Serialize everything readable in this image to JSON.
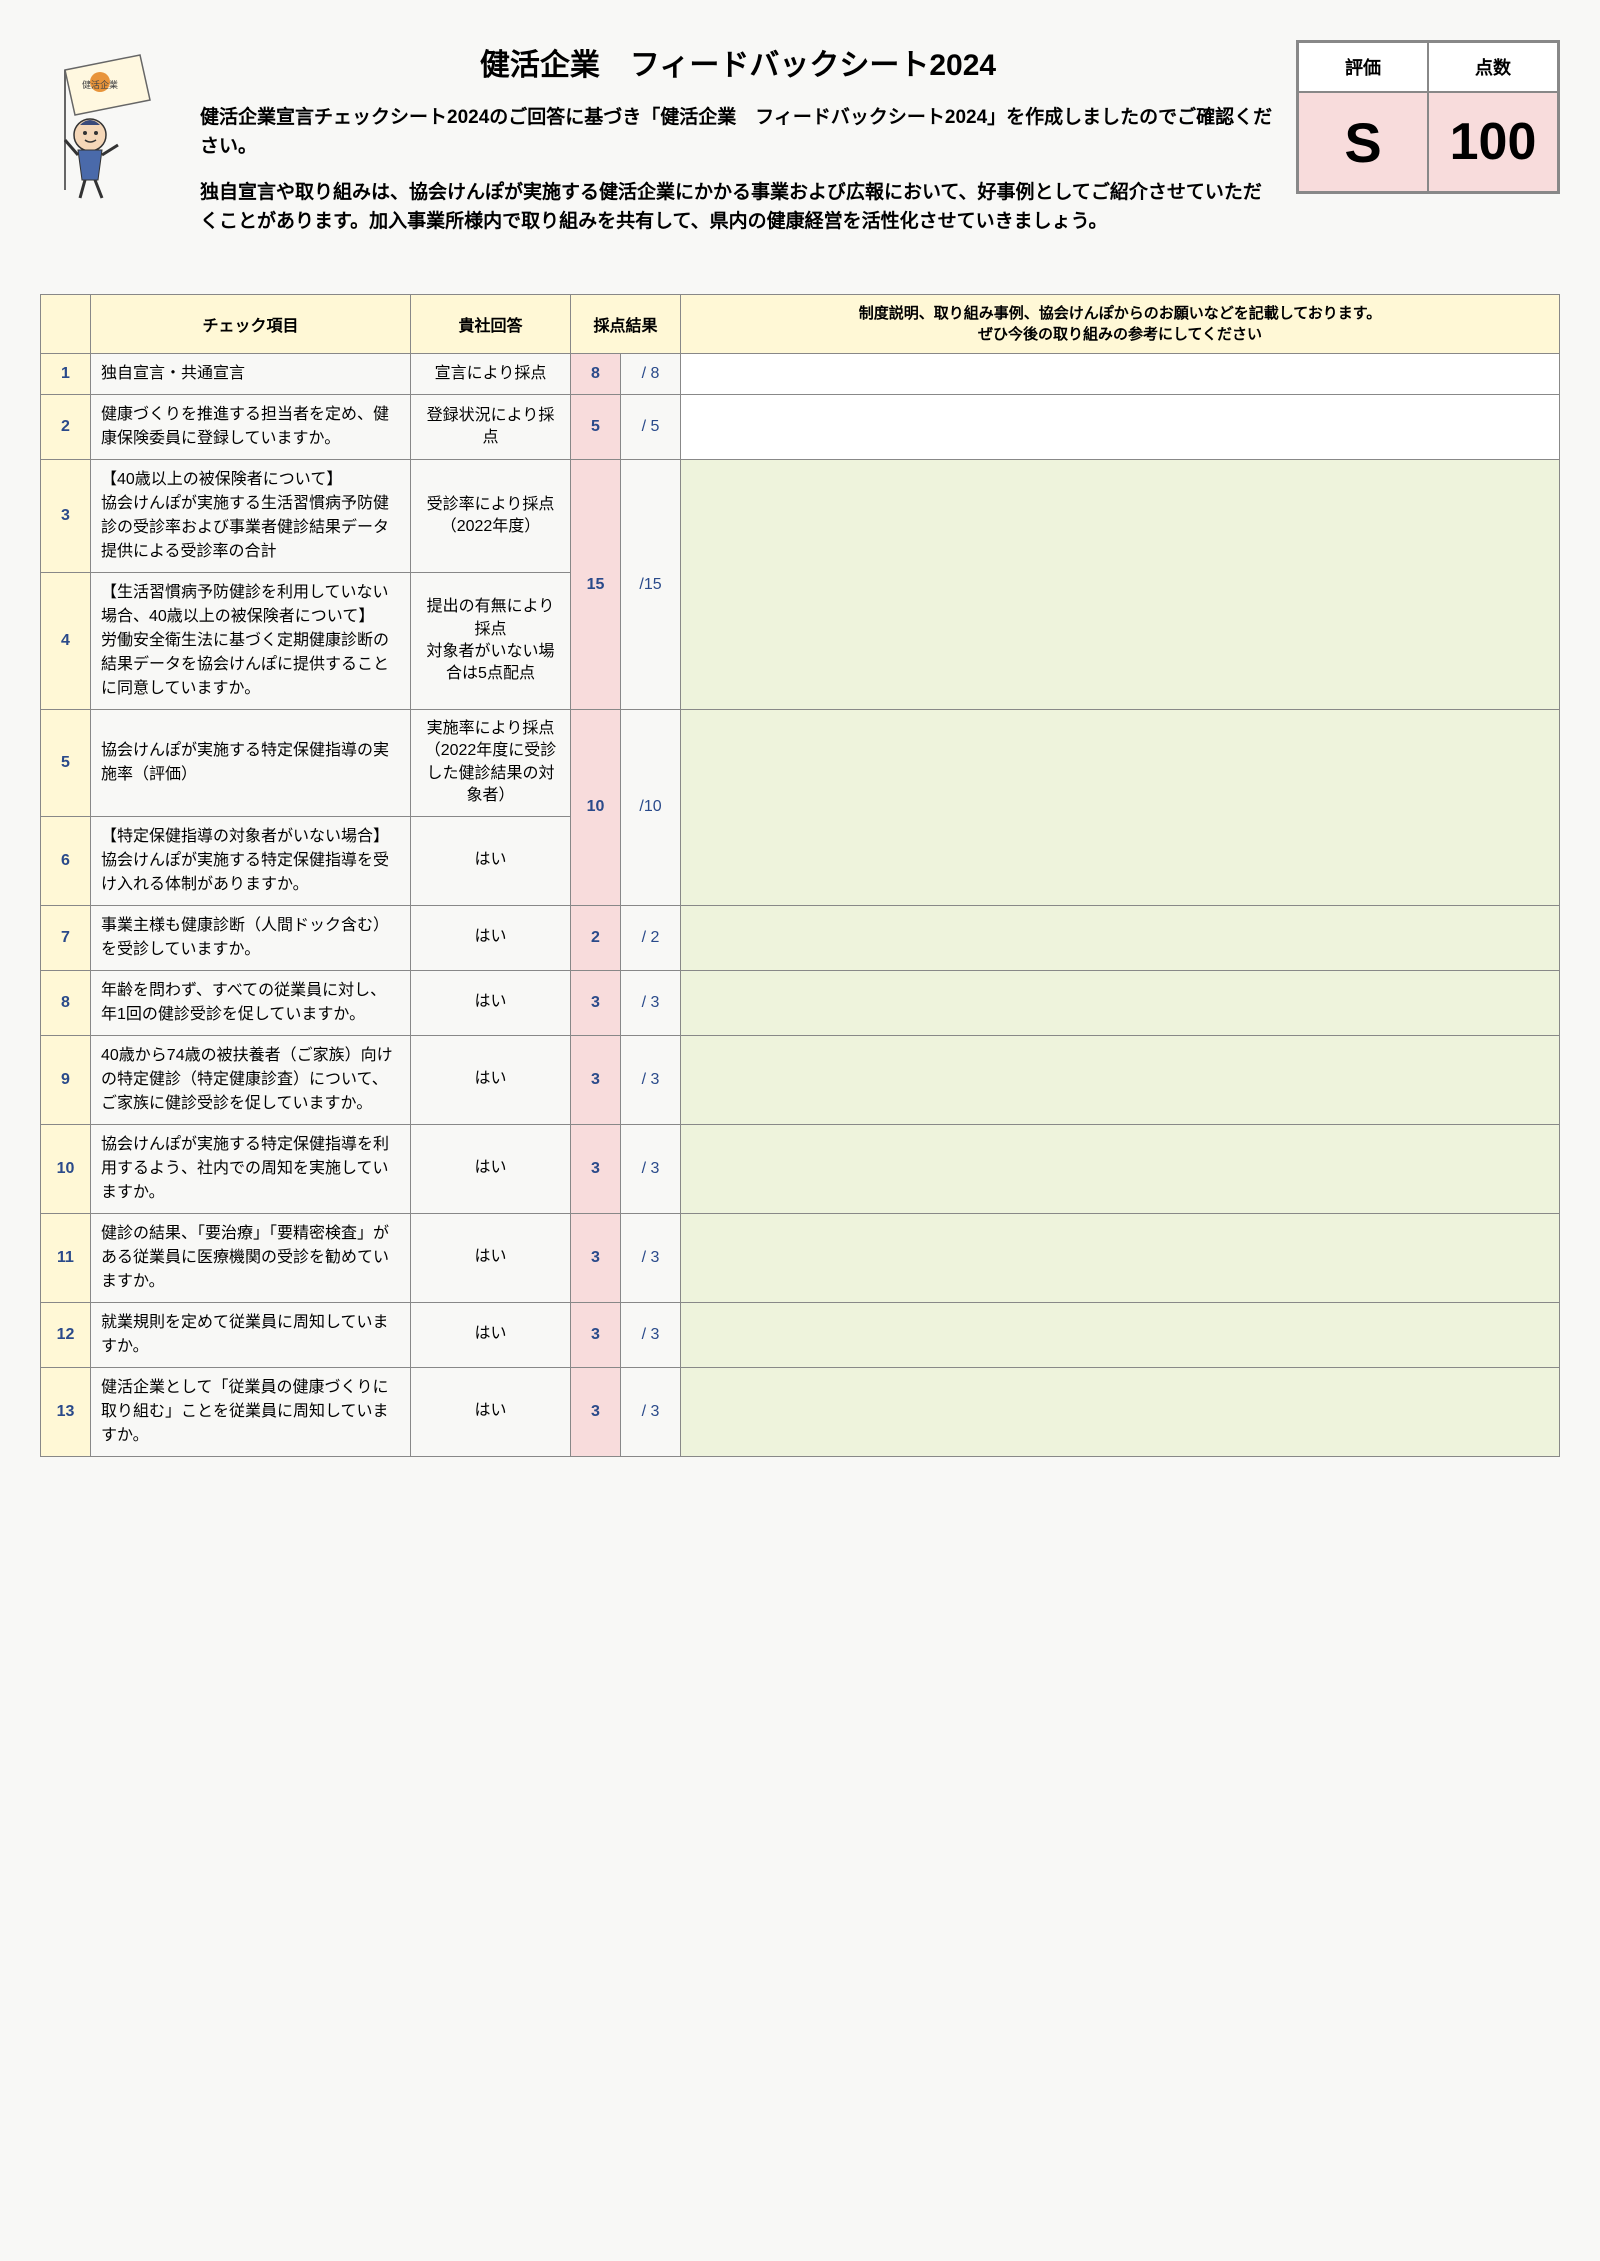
{
  "header": {
    "title": "健活企業　フィードバックシート2024",
    "intro1": "健活企業宣言チェックシート2024のご回答に基づき「健活企業　フィードバックシート2024」を作成しましたのでご確認ください。",
    "intro2": "独自宣言や取り組みは、協会けんぽが実施する健活企業にかかる事業および広報において、好事例としてご紹介させていただくことがあります。加入事業所様内で取り組みを共有して、県内の健康経営を活性化させていきましょう。",
    "eval_label": "評価",
    "score_label": "点数",
    "eval_value": "S",
    "score_value": "100"
  },
  "table": {
    "th_item": "チェック項目",
    "th_answer": "貴社回答",
    "th_score": "採点結果",
    "th_notes_l1": "制度説明、取り組み事例、協会けんぽからのお願いなどを記載しております。",
    "th_notes_l2": "ぜひ今後の取り組みの参考にしてください"
  },
  "rows": [
    {
      "num": "1",
      "item": "独自宣言・共通宣言",
      "ans": "宣言により採点",
      "sA": "8",
      "sB": "/ 8",
      "rowspanScore": 1,
      "notesGreen": false
    },
    {
      "num": "2",
      "item": "健康づくりを推進する担当者を定め、健康保険委員に登録していますか。",
      "ans": "登録状況により採点",
      "sA": "5",
      "sB": "/ 5",
      "rowspanScore": 1,
      "notesGreen": false
    },
    {
      "num": "3",
      "item": "【40歳以上の被保険者について】\n協会けんぽが実施する生活習慣病予防健診の受診率および事業者健診結果データ提供による受診率の合計",
      "ans": "受診率により採点\n（2022年度）",
      "sA": "15",
      "sB": "/15",
      "rowspanScore": 2,
      "notesGreen": true
    },
    {
      "num": "4",
      "item": "【生活習慣病予防健診を利用していない場合、40歳以上の被保険者について】\n労働安全衛生法に基づく定期健康診断の結果データを協会けんぽに提供することに同意していますか。",
      "ans": "提出の有無により採点\n対象者がいない場合は5点配点",
      "sA": "",
      "sB": "",
      "rowspanScore": 0,
      "notesGreen": false
    },
    {
      "num": "5",
      "item": "協会けんぽが実施する特定保健指導の実施率（評価）",
      "ans": "実施率により採点\n（2022年度に受診した健診結果の対象者）",
      "sA": "10",
      "sB": "/10",
      "rowspanScore": 2,
      "notesGreen": true
    },
    {
      "num": "6",
      "item": "【特定保健指導の対象者がいない場合】\n協会けんぽが実施する特定保健指導を受け入れる体制がありますか。",
      "ans": "はい",
      "sA": "",
      "sB": "",
      "rowspanScore": 0,
      "notesGreen": false
    },
    {
      "num": "7",
      "item": "事業主様も健康診断（人間ドック含む）を受診していますか。",
      "ans": "はい",
      "sA": "2",
      "sB": "/ 2",
      "rowspanScore": 1,
      "notesGreen": true
    },
    {
      "num": "8",
      "item": "年齢を問わず、すべての従業員に対し、年1回の健診受診を促していますか。",
      "ans": "はい",
      "sA": "3",
      "sB": "/ 3",
      "rowspanScore": 1,
      "notesGreen": true
    },
    {
      "num": "9",
      "item": "40歳から74歳の被扶養者（ご家族）向けの特定健診（特定健康診査）について、ご家族に健診受診を促していますか。",
      "ans": "はい",
      "sA": "3",
      "sB": "/ 3",
      "rowspanScore": 1,
      "notesGreen": true
    },
    {
      "num": "10",
      "item": "協会けんぽが実施する特定保健指導を利用するよう、社内での周知を実施していますか。",
      "ans": "はい",
      "sA": "3",
      "sB": "/ 3",
      "rowspanScore": 1,
      "notesGreen": true
    },
    {
      "num": "11",
      "item": "健診の結果、「要治療」「要精密検査」がある従業員に医療機関の受診を勧めていますか。",
      "ans": "はい",
      "sA": "3",
      "sB": "/ 3",
      "rowspanScore": 1,
      "notesGreen": true
    },
    {
      "num": "12",
      "item": "就業規則を定めて従業員に周知していますか。",
      "ans": "はい",
      "sA": "3",
      "sB": "/ 3",
      "rowspanScore": 1,
      "notesGreen": true
    },
    {
      "num": "13",
      "item": "健活企業として「従業員の健康づくりに取り組む」ことを従業員に周知していますか。",
      "ans": "はい",
      "sA": "3",
      "sB": "/ 3",
      "rowspanScore": 1,
      "notesGreen": true
    }
  ],
  "colors": {
    "header_bg": "#fff8d6",
    "pink_bg": "#f8dcdc",
    "green_bg": "#eef3dc",
    "border": "#888888",
    "blue_text": "#2a4a8a"
  }
}
